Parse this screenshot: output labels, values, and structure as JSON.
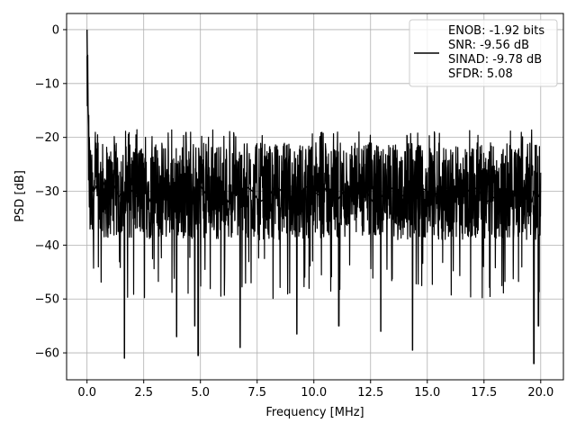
{
  "chart_data": {
    "type": "line",
    "title": "",
    "xlabel": "Frequency [MHz]",
    "ylabel": "PSD [dB]",
    "xlim": [
      -0.9,
      21.0
    ],
    "ylim": [
      -65,
      3
    ],
    "grid": true,
    "legend_position": "top-right",
    "line_color": "#000000",
    "x_ticks": [
      0.0,
      2.5,
      5.0,
      7.5,
      10.0,
      12.5,
      15.0,
      17.5,
      20.0
    ],
    "x_tick_labels": [
      "0.0",
      "2.5",
      "5.0",
      "7.5",
      "10.0",
      "12.5",
      "15.0",
      "17.5",
      "20.0"
    ],
    "y_ticks": [
      0,
      -10,
      -20,
      -30,
      -40,
      -50,
      -60
    ],
    "y_tick_labels": [
      "0",
      "−10",
      "−20",
      "−30",
      "−40",
      "−50",
      "−60"
    ],
    "legend": {
      "lines": [
        "ENOB: -1.92 bits",
        "SNR: -9.56 dB",
        "SINAD: -9.78 dB",
        "SFDR: 5.08"
      ]
    },
    "series": [
      {
        "values_note": "",
        "x": [
          0.0,
          0.02,
          0.04,
          0.06,
          0.08,
          0.1,
          0.12,
          0.15,
          0.2,
          0.3,
          0.4,
          0.5,
          0.6,
          0.8,
          1.0,
          1.2,
          1.4,
          1.6,
          1.7,
          1.8,
          2.0,
          2.2,
          2.5,
          2.8,
          3.0,
          3.3,
          3.6,
          3.9,
          4.0,
          4.2,
          4.5,
          4.8,
          4.9,
          5.0,
          5.3,
          5.6,
          5.9,
          6.2,
          6.5,
          6.7,
          7.0,
          7.3,
          7.6,
          8.0,
          8.3,
          8.6,
          9.0,
          9.3,
          9.6,
          10.0,
          10.3,
          10.6,
          11.0,
          11.3,
          11.6,
          12.0,
          12.3,
          12.6,
          13.0,
          13.3,
          13.6,
          14.0,
          14.3,
          14.6,
          15.0,
          15.3,
          15.6,
          16.0,
          16.3,
          16.6,
          17.0,
          17.3,
          17.6,
          18.0,
          18.3,
          18.6,
          19.0,
          19.3,
          19.6,
          19.7,
          19.9,
          20.0
        ],
        "y": [
          0.0,
          -8,
          -14,
          -18,
          -22,
          -20,
          -24,
          -26,
          -28,
          -30,
          -29,
          -31,
          -30,
          -28,
          -32,
          -29,
          -31,
          -30,
          -33,
          -29,
          -30,
          -31,
          -29,
          -32,
          -30,
          -28,
          -31,
          -30,
          -33,
          -29,
          -31,
          -30,
          -32,
          -29,
          -31,
          -30,
          -28,
          -32,
          -30,
          -31,
          -29,
          -30,
          -32,
          -31,
          -29,
          -30,
          -31,
          -33,
          -29,
          -30,
          -31,
          -29,
          -32,
          -30,
          -31,
          -29,
          -30,
          -32,
          -31,
          -29,
          -30,
          -31,
          -32,
          -29,
          -30,
          -31,
          -29,
          -32,
          -30,
          -31,
          -29,
          -30,
          -32,
          -31,
          -29,
          -30,
          -31,
          -29,
          -32,
          -30,
          -31,
          -30
        ]
      }
    ]
  }
}
